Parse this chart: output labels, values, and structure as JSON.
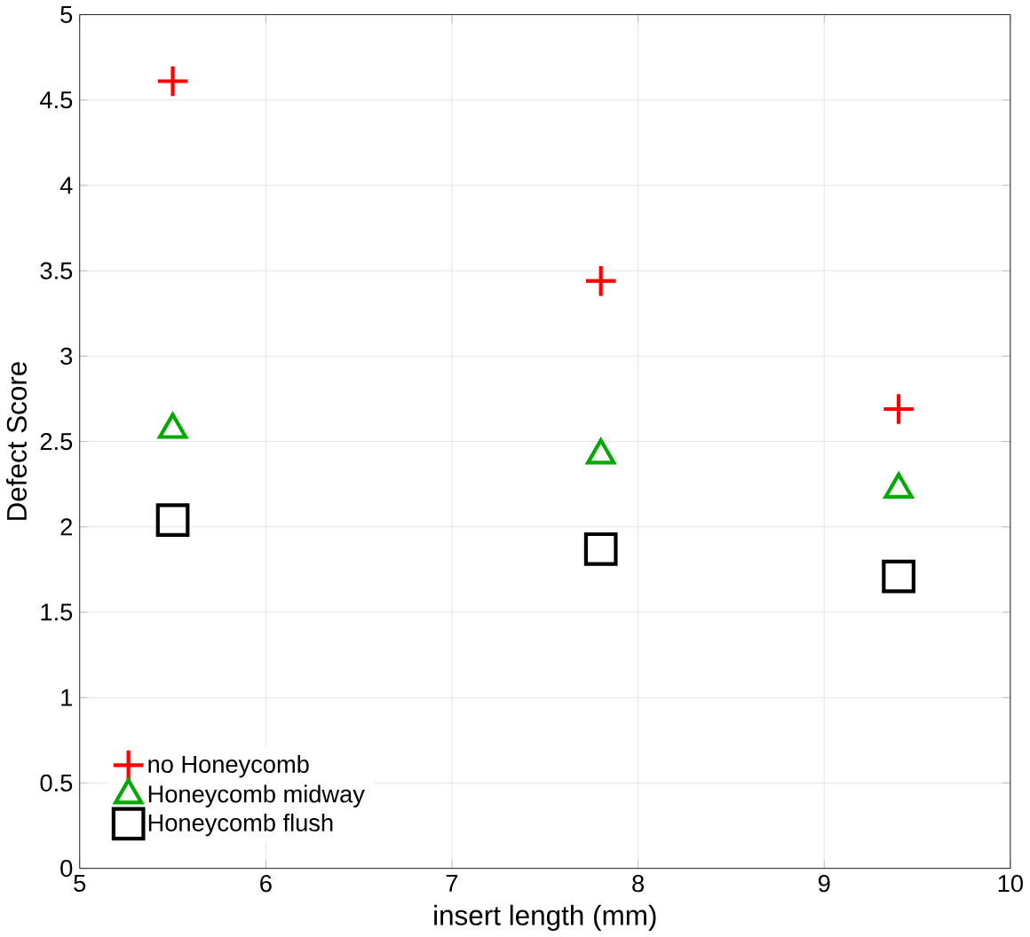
{
  "chart_data": {
    "type": "scatter",
    "xlabel": "insert length (mm)",
    "ylabel": "Defect Score",
    "xlim": [
      5,
      10
    ],
    "ylim": [
      0,
      5
    ],
    "xticks": [
      5,
      6,
      7,
      8,
      9,
      10
    ],
    "yticks": [
      0,
      0.5,
      1,
      1.5,
      2,
      2.5,
      3,
      3.5,
      4,
      4.5,
      5
    ],
    "grid": true,
    "legend": "bottom left",
    "x": [
      5.5,
      7.8,
      9.4
    ],
    "series": [
      {
        "name": "no Honeycomb",
        "color": "#ff0000",
        "marker": "cross",
        "values": [
          4.61,
          3.44,
          2.69
        ]
      },
      {
        "name": "Honeycomb midway",
        "color": "#00aa00",
        "marker": "triangle",
        "values": [
          2.57,
          2.42,
          2.22
        ]
      },
      {
        "name": "Honeycomb flush",
        "color": "#000000",
        "marker": "square",
        "values": [
          2.04,
          1.87,
          1.71
        ]
      }
    ]
  }
}
